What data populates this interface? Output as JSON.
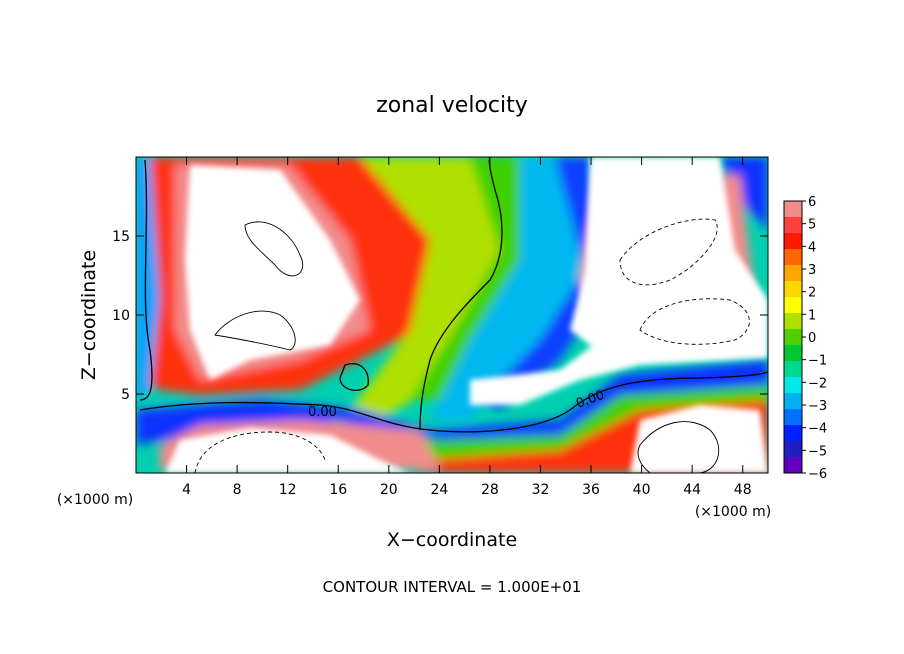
{
  "chart_data": {
    "type": "heatmap",
    "title": "zonal velocity",
    "xlabel": "X−coordinate",
    "ylabel": "Z−coordinate",
    "x_unit_left": "(×1000 m)",
    "x_unit_right": "(×1000 m)",
    "footer": "CONTOUR INTERVAL = 1.000E+01",
    "contour_label": "0.00",
    "xlim": [
      0,
      50
    ],
    "ylim": [
      0,
      20
    ],
    "xticks": [
      4,
      8,
      12,
      16,
      20,
      24,
      28,
      32,
      36,
      40,
      44,
      48
    ],
    "yticks": [
      5,
      10,
      15
    ],
    "colorbar": {
      "min": -6,
      "max": 6,
      "labels": [
        "6",
        "5",
        "4",
        "3",
        "2",
        "1",
        "0",
        "−1",
        "−2",
        "−3",
        "−4",
        "−5",
        "−6"
      ],
      "colors": [
        "#f28c8c",
        "#ff4040",
        "#ff1a00",
        "#ff6600",
        "#ffa500",
        "#ffd700",
        "#ffff00",
        "#b0e000",
        "#50d000",
        "#00c830",
        "#00d890",
        "#00e8e8",
        "#00b0f0",
        "#0070ff",
        "#0020ff",
        "#2020c0",
        "#6000c0"
      ]
    },
    "grid": false
  }
}
